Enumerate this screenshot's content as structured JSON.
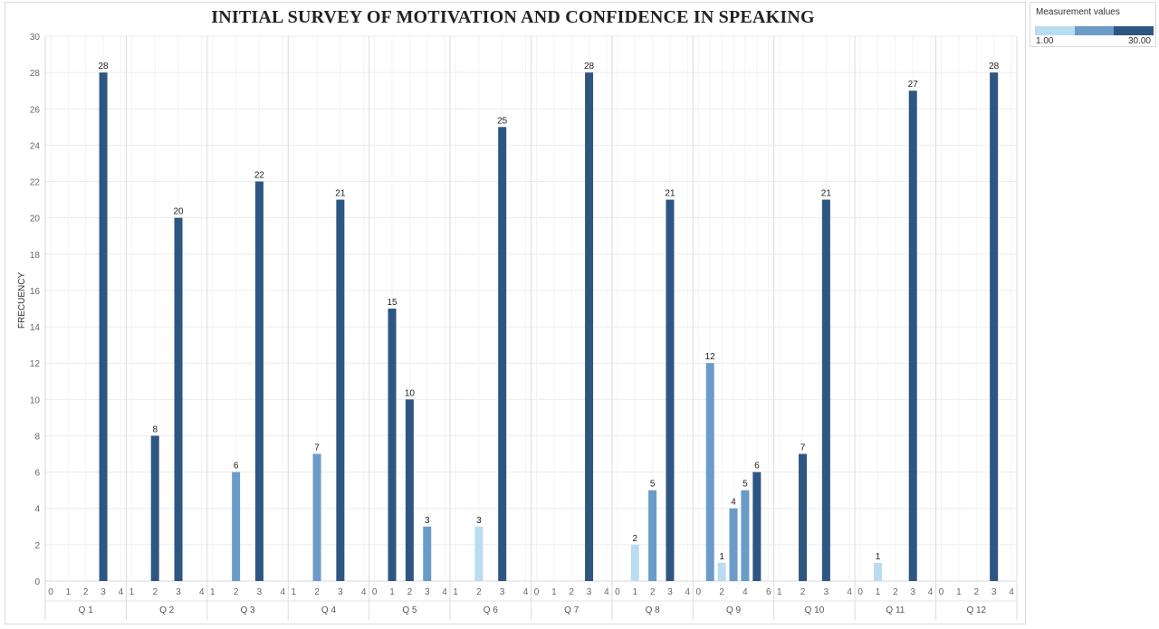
{
  "title": "INITIAL SURVEY OF MOTIVATION AND CONFIDENCE IN SPEAKING",
  "legend": {
    "title": "Measurement values",
    "min_label": "1.00",
    "max_label": "30.00",
    "colors": [
      "#b9dcf0",
      "#6b9bc8",
      "#2d5683"
    ]
  },
  "chart_data": {
    "type": "bar",
    "title": "INITIAL SURVEY OF MOTIVATION AND CONFIDENCE IN SPEAKING",
    "ylabel": "FRECUENCY",
    "xlabel": "",
    "ylim": [
      0,
      30
    ],
    "yticks": [
      0,
      2,
      4,
      6,
      8,
      10,
      12,
      14,
      16,
      18,
      20,
      22,
      24,
      26,
      28,
      30
    ],
    "grid": true,
    "legend_position": "top-right",
    "color_scale": {
      "min": 1,
      "max": 30,
      "low": "#b9dcf0",
      "mid": "#6b9bc8",
      "high": "#2d5683"
    },
    "groups": [
      {
        "name": "Q 1",
        "categories": [
          "0",
          "1",
          "2",
          "3",
          "4"
        ],
        "values": [
          0,
          0,
          0,
          28,
          0
        ],
        "shade": [
          null,
          null,
          null,
          "dark",
          null
        ]
      },
      {
        "name": "Q 2",
        "categories": [
          "1",
          "2",
          "3",
          "4"
        ],
        "values": [
          0,
          8,
          20,
          0
        ],
        "shade": [
          null,
          "dark",
          "dark",
          null
        ]
      },
      {
        "name": "Q 3",
        "categories": [
          "1",
          "2",
          "3",
          "4"
        ],
        "values": [
          0,
          6,
          22,
          0
        ],
        "shade": [
          null,
          "mid",
          "dark",
          null
        ]
      },
      {
        "name": "Q 4",
        "categories": [
          "1",
          "2",
          "3",
          "4"
        ],
        "values": [
          0,
          7,
          21,
          0
        ],
        "shade": [
          null,
          "mid",
          "dark",
          null
        ]
      },
      {
        "name": "Q 5",
        "categories": [
          "0",
          "1",
          "2",
          "3",
          "4"
        ],
        "values": [
          0,
          15,
          10,
          3,
          0
        ],
        "shade": [
          null,
          "dark",
          "dark",
          "mid",
          null
        ]
      },
      {
        "name": "Q 6",
        "categories": [
          "1",
          "2",
          "3",
          "4"
        ],
        "values": [
          0,
          3,
          25,
          0
        ],
        "shade": [
          null,
          "light",
          "dark",
          null
        ]
      },
      {
        "name": "Q 7",
        "categories": [
          "0",
          "1",
          "2",
          "3",
          "4"
        ],
        "values": [
          0,
          0,
          0,
          28,
          0
        ],
        "shade": [
          null,
          null,
          null,
          "dark",
          null
        ]
      },
      {
        "name": "Q 8",
        "categories": [
          "0",
          "1",
          "2",
          "3",
          "4"
        ],
        "values": [
          0,
          2,
          5,
          21,
          0
        ],
        "shade": [
          null,
          "light",
          "mid",
          "dark",
          null
        ]
      },
      {
        "name": "Q 9",
        "categories": [
          "0",
          "1",
          "2",
          "3",
          "4",
          "5",
          "6"
        ],
        "values": [
          0,
          12,
          1,
          4,
          5,
          6,
          0
        ],
        "shade": [
          null,
          "mid",
          "light",
          "mid",
          "mid",
          "dark",
          null
        ],
        "tick_labels": [
          "0",
          "",
          "2",
          "",
          "4",
          "",
          "6"
        ]
      },
      {
        "name": "Q 10",
        "categories": [
          "1",
          "2",
          "3",
          "4"
        ],
        "values": [
          0,
          7,
          21,
          0
        ],
        "shade": [
          null,
          "dark",
          "dark",
          null
        ]
      },
      {
        "name": "Q 11",
        "categories": [
          "0",
          "1",
          "2",
          "3",
          "4"
        ],
        "values": [
          0,
          1,
          0,
          27,
          0
        ],
        "shade": [
          null,
          "light",
          null,
          "dark",
          null
        ]
      },
      {
        "name": "Q 12",
        "categories": [
          "0",
          "1",
          "2",
          "3",
          "4"
        ],
        "values": [
          0,
          0,
          0,
          28,
          0
        ],
        "shade": [
          null,
          null,
          null,
          "dark",
          null
        ]
      }
    ]
  }
}
